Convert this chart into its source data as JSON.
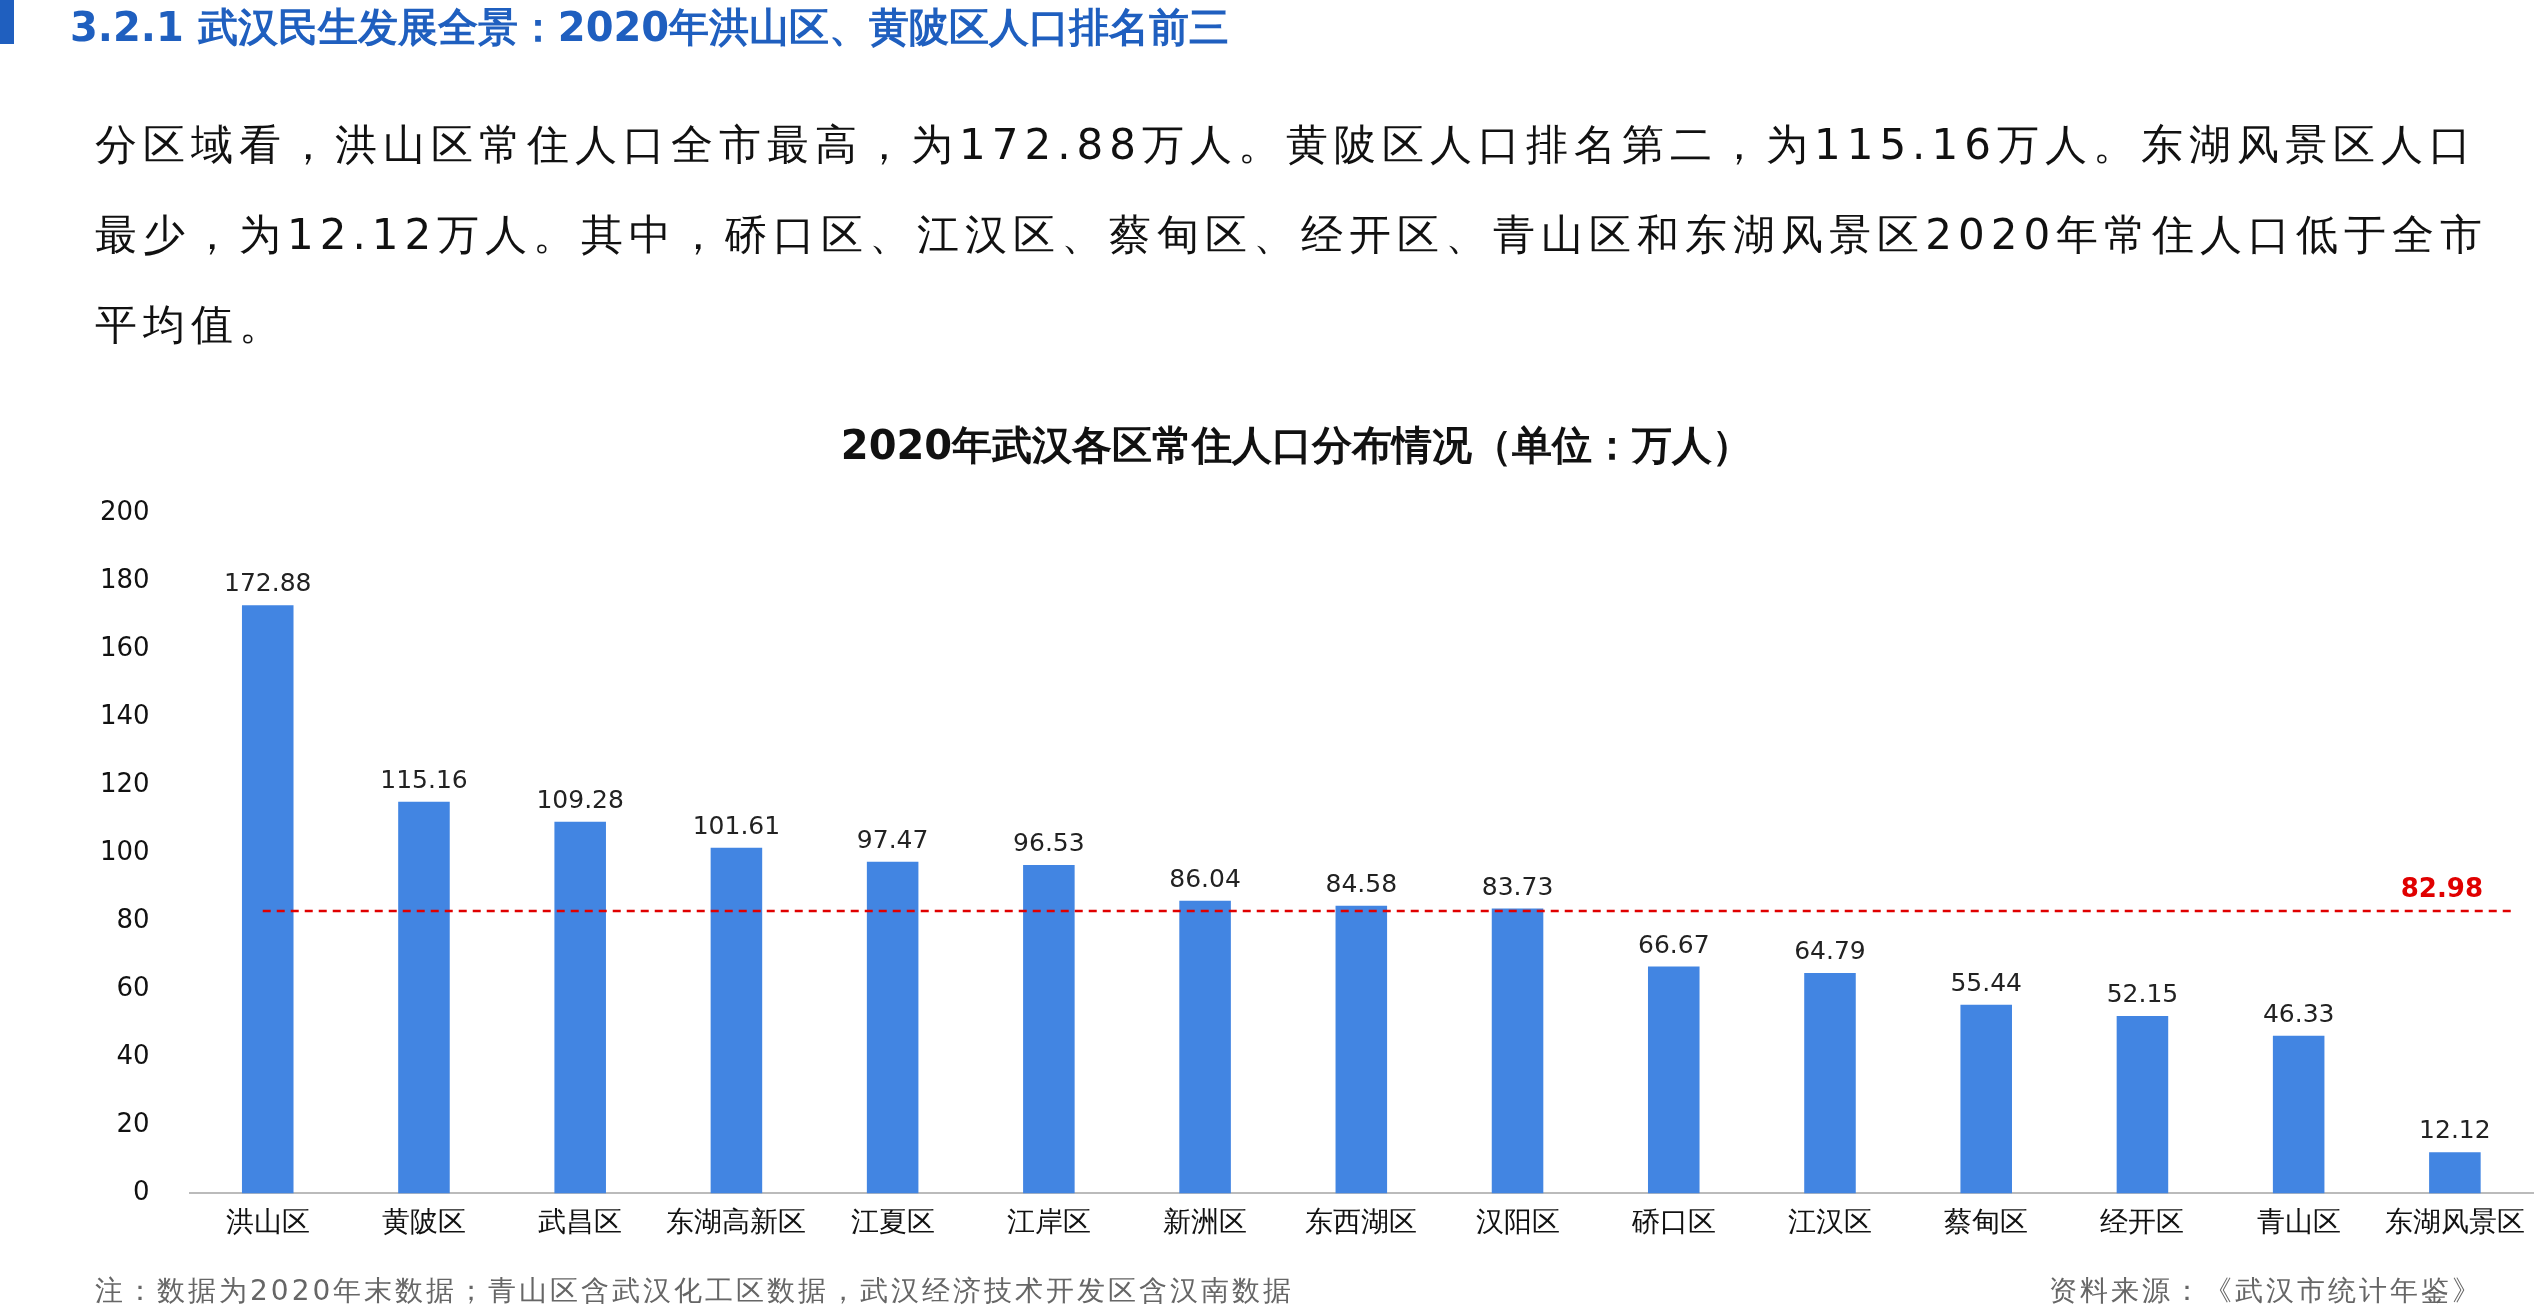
{
  "chart_data": {
    "type": "bar",
    "title": "2020年武汉各区常住人口分布情况（单位：万人）",
    "categories": [
      "洪山区",
      "黄陂区",
      "武昌区",
      "东湖高新区",
      "江夏区",
      "江岸区",
      "新洲区",
      "东西湖区",
      "汉阳区",
      "硚口区",
      "江汉区",
      "蔡甸区",
      "经开区",
      "青山区",
      "东湖风景区"
    ],
    "values": [
      172.88,
      115.16,
      109.28,
      101.61,
      97.47,
      96.53,
      86.04,
      84.58,
      83.73,
      66.67,
      64.79,
      55.44,
      52.15,
      46.33,
      12.12
    ],
    "color": "#4285e2",
    "data_labels": true,
    "ylim": [
      0,
      200
    ],
    "yticks": [
      0,
      20,
      40,
      60,
      80,
      100,
      120,
      140,
      160,
      180,
      200
    ],
    "grid": false,
    "legend": false,
    "ref_lines": [
      {
        "axis": "y",
        "value": 82.98,
        "label": "82.98",
        "color": "#e00000",
        "line_style": "dashed"
      }
    ],
    "annotations": [
      "3.2.1 武汉民生发展全景：2020年洪山区、黄陂区人口排名前三",
      "分区域看，洪山区常住人口全市最高，为172.88万人。黄陂区人口排名第二，为115.16万人。东湖风景区人口最少，为12.12万人。其中，硚口区、江汉区、蔡甸区、经开区、青山区和东湖风景区2020年常住人口低于全市平均值。",
      "注：数据为2020年末数据；青山区含武汉化工区数据，武汉经济技术开发区含汉南数据",
      "资料来源：《武汉市统计年鉴》"
    ]
  }
}
